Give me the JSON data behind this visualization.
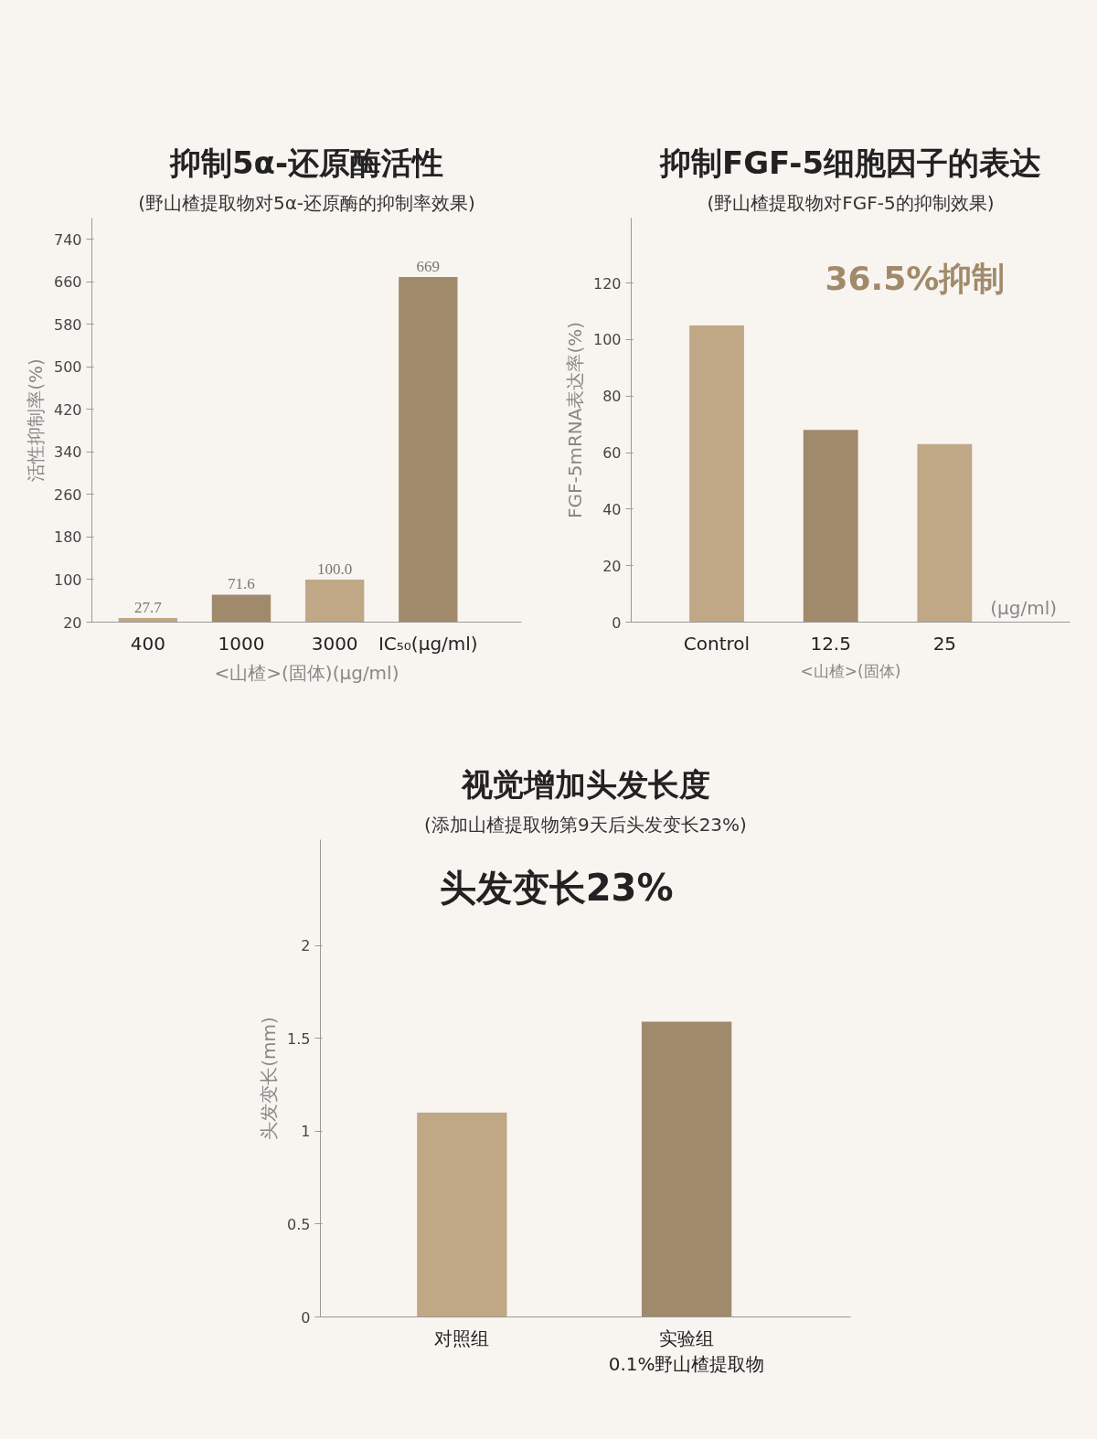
{
  "chart_data": [
    {
      "type": "bar",
      "title": "抑制5α-还原酶活性",
      "subtitle": "(野山楂提取物对5α-还原酶的抑制率效果)",
      "categories": [
        "400",
        "1000",
        "3000",
        "IC₅₀(μg/ml)"
      ],
      "values": [
        27.7,
        71.6,
        100.0,
        669
      ],
      "colors": [
        "#c0a786",
        "#a08a6b",
        "#c0a786",
        "#a08a6b"
      ],
      "value_labels": [
        "27.7",
        "71.6",
        "100.0",
        "669"
      ],
      "ylim": [
        20,
        780
      ],
      "yticks": [
        20,
        100,
        180,
        260,
        340,
        420,
        500,
        580,
        660,
        740
      ],
      "ylabel": "活性抑制率(%)",
      "xlabel": "<山楂>(固体)(μg/ml)",
      "grid": false
    },
    {
      "type": "bar",
      "title": "抑制FGF-5细胞因子的表达",
      "subtitle": "(野山楂提取物对FGF-5的抑制效果)",
      "categories": [
        "Control",
        "12.5",
        "25"
      ],
      "values": [
        105,
        68,
        63
      ],
      "colors": [
        "#c0a786",
        "#a08a6b",
        "#c0a786"
      ],
      "ylim": [
        0,
        143
      ],
      "yticks": [
        0,
        20,
        40,
        60,
        80,
        100,
        120
      ],
      "ylabel": "FGF-5mRNA表达率(%)",
      "xlabel": "<山楂>(固体)",
      "annotations": [
        "36.5%抑制",
        "(μg/ml)"
      ],
      "grid": false
    },
    {
      "type": "bar",
      "title": "视觉增加头发长度",
      "subtitle": "(添加山楂提取物第9天后头发变长23%)",
      "categories": [
        "对照组",
        "实验组\n0.1%野山楂提取物"
      ],
      "values": [
        1.1,
        1.59
      ],
      "colors": [
        "#c0a786",
        "#a08a6b"
      ],
      "ylim": [
        0,
        2.57
      ],
      "yticks": [
        0,
        0.5,
        1,
        1.5,
        2
      ],
      "ylabel": "头发变长(mm)",
      "annotations": [
        "头发变长23%"
      ],
      "grid": false
    }
  ]
}
